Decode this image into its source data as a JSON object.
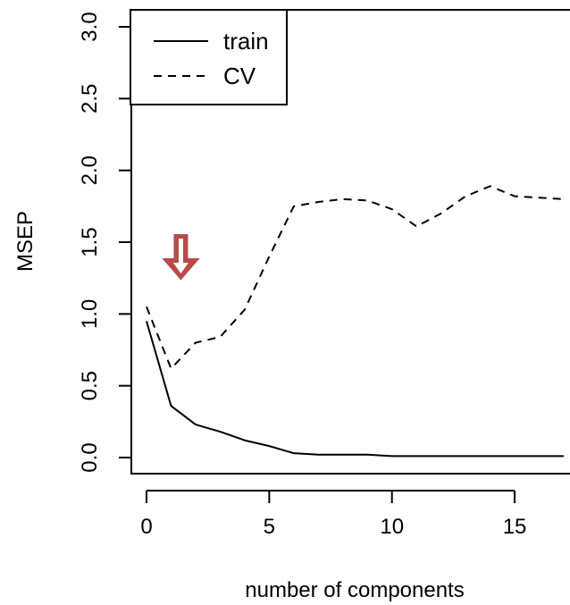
{
  "chart_data": {
    "type": "line",
    "xlabel": "number of components",
    "ylabel": "MSEP",
    "xlim": [
      -0.7,
      17
    ],
    "ylim": [
      -0.1,
      3.1
    ],
    "x_ticks": [
      0,
      5,
      10,
      15
    ],
    "x_tick_labels": [
      "0",
      "5",
      "10",
      "15"
    ],
    "y_ticks": [
      0.0,
      0.5,
      1.0,
      1.5,
      2.0,
      2.5,
      3.0
    ],
    "y_tick_labels": [
      "0.0",
      "0.5",
      "1.0",
      "1.5",
      "2.0",
      "2.5",
      "3.0"
    ],
    "legend_position": "top-left",
    "series": [
      {
        "name": "train",
        "line_style": "solid",
        "x": [
          0,
          1,
          2,
          3,
          4,
          5,
          6,
          7,
          8,
          9,
          10,
          11,
          12,
          13,
          14,
          15,
          16,
          17
        ],
        "values": [
          0.95,
          0.36,
          0.23,
          0.18,
          0.12,
          0.08,
          0.03,
          0.02,
          0.02,
          0.02,
          0.01,
          0.01,
          0.01,
          0.01,
          0.01,
          0.01,
          0.01,
          0.01
        ]
      },
      {
        "name": "CV",
        "line_style": "dashed",
        "x": [
          0,
          1,
          2,
          3,
          4,
          5,
          6,
          7,
          8,
          9,
          10,
          11,
          12,
          13,
          14,
          15,
          16,
          17
        ],
        "values": [
          1.05,
          0.62,
          0.8,
          0.84,
          1.03,
          1.4,
          1.75,
          1.78,
          1.8,
          1.79,
          1.73,
          1.61,
          1.7,
          1.82,
          1.89,
          1.82,
          1.81,
          1.8
        ]
      }
    ],
    "annotations": [
      {
        "type": "arrow",
        "direction": "down",
        "x": 1.4,
        "y": 1.55,
        "color": "#b84a4a"
      }
    ]
  }
}
